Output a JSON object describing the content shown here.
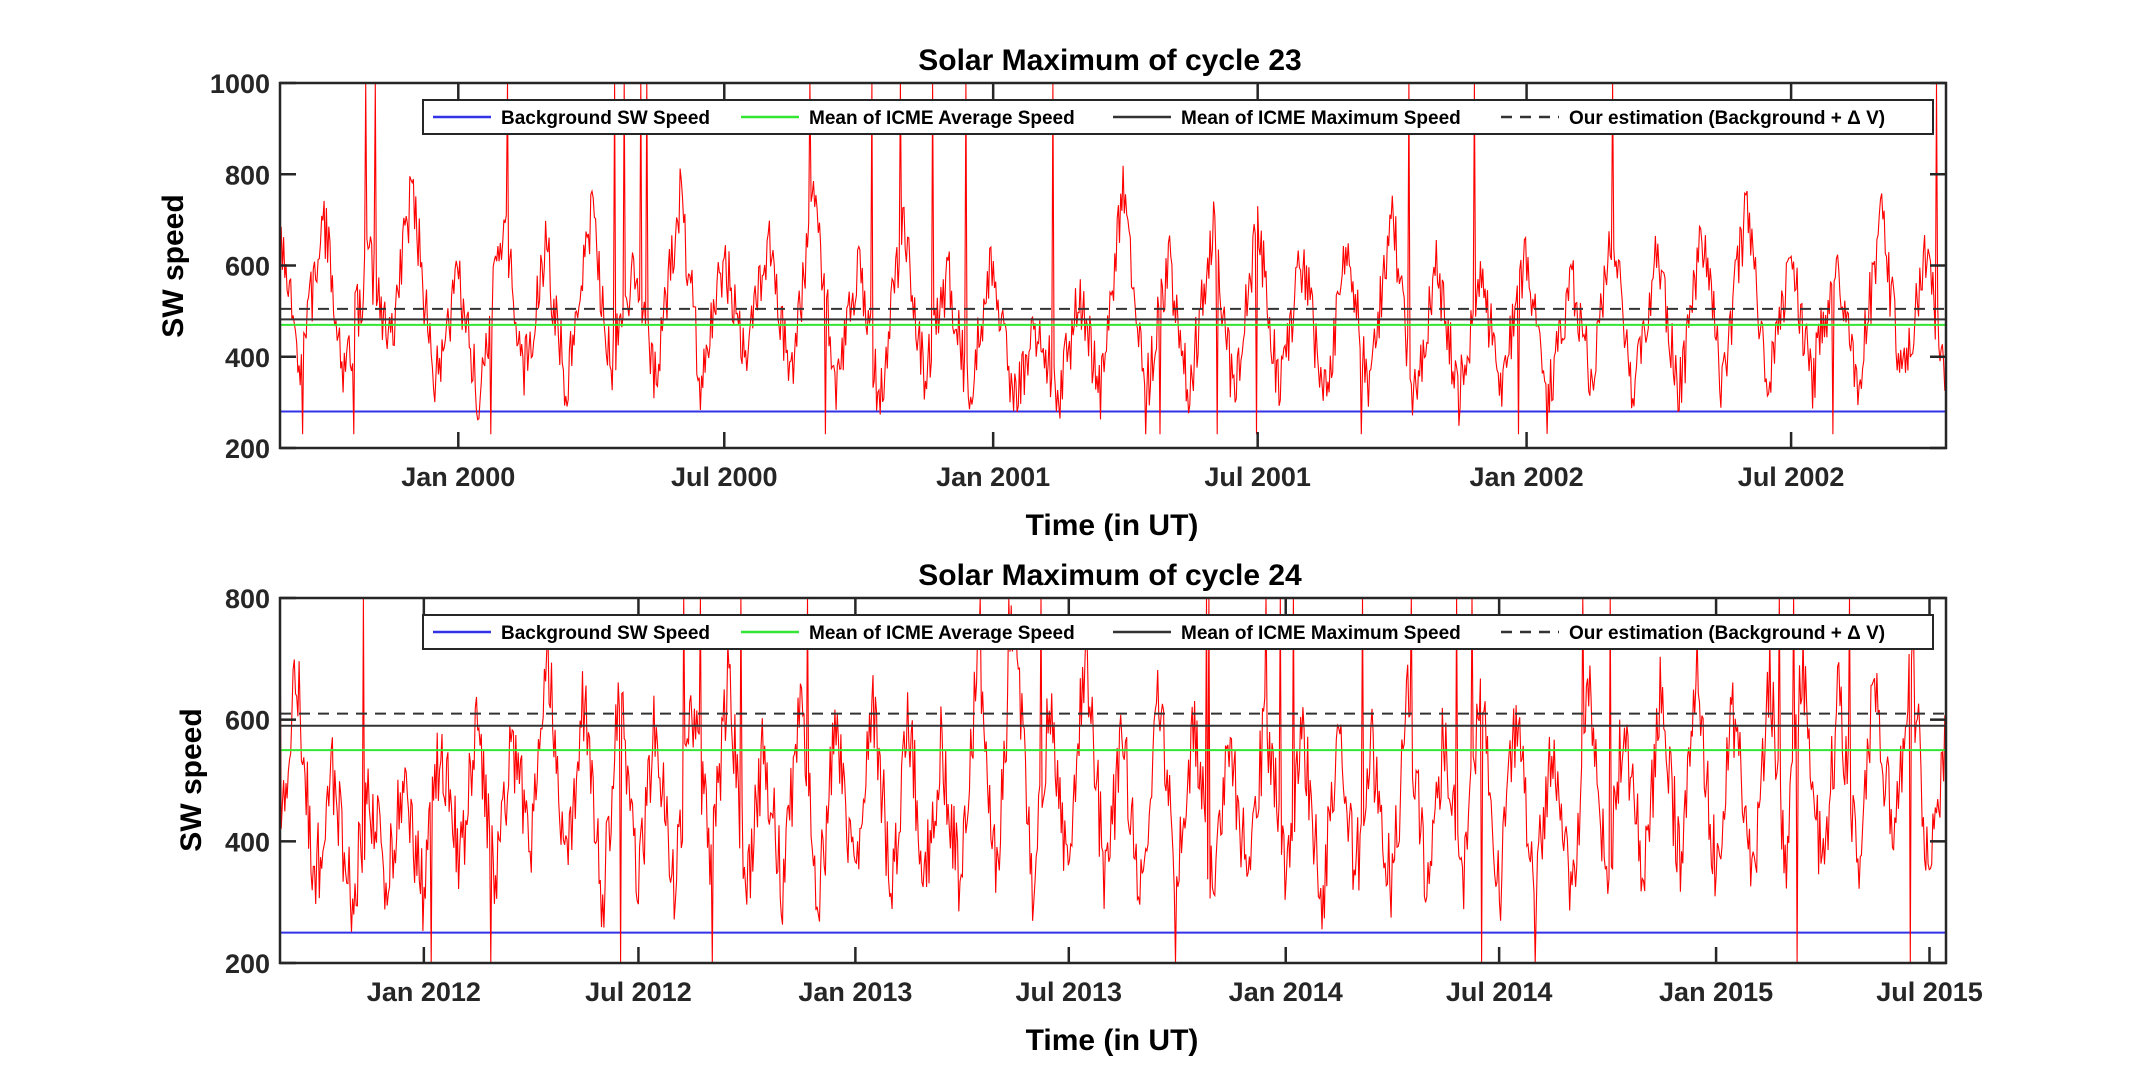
{
  "chart_data": [
    {
      "type": "line",
      "title": "Solar Maximum of cycle 23",
      "xlabel": "Time (in UT)",
      "ylabel": "SW speed",
      "xlim": [
        "1999-09-01",
        "2002-10-15"
      ],
      "ylim": [
        200,
        1000
      ],
      "yticks": [
        200,
        400,
        600,
        800,
        1000
      ],
      "xticks": [
        {
          "date": "2000-01-01",
          "label": "Jan 2000"
        },
        {
          "date": "2000-07-01",
          "label": "Jul 2000"
        },
        {
          "date": "2001-01-01",
          "label": "Jan 2001"
        },
        {
          "date": "2001-07-01",
          "label": "Jul 2001"
        },
        {
          "date": "2002-01-01",
          "label": "Jan 2002"
        },
        {
          "date": "2002-07-01",
          "label": "Jul 2002"
        }
      ],
      "grid": false,
      "legend_position": "top-right",
      "series": [
        {
          "name": "Background SW Speed",
          "kind": "hline",
          "y": 280,
          "color": "#3232e6",
          "style": "solid"
        },
        {
          "name": "Mean of ICME Average Speed",
          "kind": "hline",
          "y": 470,
          "color": "#33e633",
          "style": "solid"
        },
        {
          "name": "Mean of ICME Maximum Speed",
          "kind": "hline",
          "y": 482,
          "color": "#333333",
          "style": "solid"
        },
        {
          "name": "Our estimation (Background + Δ V)",
          "kind": "hline",
          "y": 505,
          "color": "#333333",
          "style": "dashed"
        }
      ],
      "sw_speed_series": {
        "color": "#ff0000",
        "x": [
          "1999-09-01",
          "1999-09-15",
          "1999-10-01",
          "1999-10-15",
          "1999-11-01",
          "1999-11-15",
          "1999-12-01",
          "1999-12-15",
          "2000-01-01",
          "2000-01-15",
          "2000-02-01",
          "2000-02-15",
          "2000-03-01",
          "2000-03-15",
          "2000-04-01",
          "2000-04-15",
          "2000-05-01",
          "2000-05-15",
          "2000-06-01",
          "2000-06-15",
          "2000-07-01",
          "2000-07-15",
          "2000-08-01",
          "2000-08-15",
          "2000-09-01",
          "2000-09-15",
          "2000-10-01",
          "2000-10-15",
          "2000-11-01",
          "2000-11-15",
          "2000-12-01",
          "2000-12-15",
          "2001-01-01",
          "2001-01-15",
          "2001-02-01",
          "2001-02-15",
          "2001-03-01",
          "2001-03-15",
          "2001-04-01",
          "2001-04-15",
          "2001-05-01",
          "2001-05-15",
          "2001-06-01",
          "2001-06-15",
          "2001-07-01",
          "2001-07-15",
          "2001-08-01",
          "2001-08-15",
          "2001-09-01",
          "2001-09-15",
          "2001-10-01",
          "2001-10-15",
          "2001-11-01",
          "2001-11-15",
          "2001-12-01",
          "2001-12-15",
          "2002-01-01",
          "2002-01-15",
          "2002-02-01",
          "2002-02-15",
          "2002-03-01",
          "2002-03-15",
          "2002-04-01",
          "2002-04-15",
          "2002-05-01",
          "2002-05-15",
          "2002-06-01",
          "2002-06-15",
          "2002-07-01",
          "2002-07-15",
          "2002-08-01",
          "2002-08-15",
          "2002-09-01",
          "2002-09-15",
          "2002-10-01",
          "2002-10-15"
        ],
        "y": [
          640,
          380,
          700,
          360,
          620,
          420,
          780,
          330,
          560,
          300,
          700,
          360,
          640,
          330,
          720,
          380,
          600,
          350,
          760,
          340,
          620,
          380,
          680,
          330,
          760,
          320,
          620,
          300,
          700,
          340,
          580,
          310,
          620,
          290,
          480,
          300,
          540,
          320,
          780,
          300,
          620,
          330,
          680,
          300,
          700,
          340,
          620,
          300,
          660,
          320,
          720,
          300,
          600,
          300,
          560,
          330,
          620,
          300,
          580,
          340,
          700,
          320,
          640,
          300,
          680,
          330,
          740,
          310,
          640,
          340,
          600,
          320,
          700,
          330,
          620,
          360
        ],
        "min_value": 230,
        "max_value": 1000
      }
    },
    {
      "type": "line",
      "title": "Solar Maximum of cycle 24",
      "xlabel": "Time (in UT)",
      "ylabel": "SW speed",
      "xlim": [
        "2011-09-01",
        "2015-07-15"
      ],
      "ylim": [
        200,
        800
      ],
      "yticks": [
        200,
        400,
        600,
        800
      ],
      "xticks": [
        {
          "date": "2012-01-01",
          "label": "Jan 2012"
        },
        {
          "date": "2012-07-01",
          "label": "Jul 2012"
        },
        {
          "date": "2013-01-01",
          "label": "Jan 2013"
        },
        {
          "date": "2013-07-01",
          "label": "Jul 2013"
        },
        {
          "date": "2014-01-01",
          "label": "Jan 2014"
        },
        {
          "date": "2014-07-01",
          "label": "Jul 2014"
        },
        {
          "date": "2015-01-01",
          "label": "Jan 2015"
        },
        {
          "date": "2015-07-01",
          "label": "Jul 2015"
        }
      ],
      "grid": false,
      "legend_position": "top-right",
      "series": [
        {
          "name": "Background SW Speed",
          "kind": "hline",
          "y": 250,
          "color": "#3232e6",
          "style": "solid"
        },
        {
          "name": "Mean of ICME Average Speed",
          "kind": "hline",
          "y": 550,
          "color": "#33e633",
          "style": "solid"
        },
        {
          "name": "Mean of ICME Maximum Speed",
          "kind": "hline",
          "y": 590,
          "color": "#333333",
          "style": "solid"
        },
        {
          "name": "Our estimation (Background + Δ V)",
          "kind": "hline",
          "y": 610,
          "color": "#333333",
          "style": "dashed"
        }
      ],
      "sw_speed_series": {
        "color": "#ff0000",
        "x": [
          "2011-09-01",
          "2011-09-15",
          "2011-10-01",
          "2011-10-15",
          "2011-11-01",
          "2011-11-15",
          "2011-12-01",
          "2011-12-15",
          "2012-01-01",
          "2012-01-15",
          "2012-02-01",
          "2012-02-15",
          "2012-03-01",
          "2012-03-15",
          "2012-04-01",
          "2012-04-15",
          "2012-05-01",
          "2012-05-15",
          "2012-06-01",
          "2012-06-15",
          "2012-07-01",
          "2012-07-15",
          "2012-08-01",
          "2012-08-15",
          "2012-09-01",
          "2012-09-15",
          "2012-10-01",
          "2012-10-15",
          "2012-11-01",
          "2012-11-15",
          "2012-12-01",
          "2012-12-15",
          "2013-01-01",
          "2013-01-15",
          "2013-02-01",
          "2013-02-15",
          "2013-03-01",
          "2013-03-15",
          "2013-04-01",
          "2013-04-15",
          "2013-05-01",
          "2013-05-15",
          "2013-06-01",
          "2013-06-15",
          "2013-07-01",
          "2013-07-15",
          "2013-08-01",
          "2013-08-15",
          "2013-09-01",
          "2013-09-15",
          "2013-10-01",
          "2013-10-15",
          "2013-11-01",
          "2013-11-15",
          "2013-12-01",
          "2013-12-15",
          "2014-01-01",
          "2014-01-15",
          "2014-02-01",
          "2014-02-15",
          "2014-03-01",
          "2014-03-15",
          "2014-04-01",
          "2014-04-15",
          "2014-05-01",
          "2014-05-15",
          "2014-06-01",
          "2014-06-15",
          "2014-07-01",
          "2014-07-15",
          "2014-08-01",
          "2014-08-15",
          "2014-09-01",
          "2014-09-15",
          "2014-10-01",
          "2014-10-15",
          "2014-11-01",
          "2014-11-15",
          "2014-12-01",
          "2014-12-15",
          "2015-01-01",
          "2015-01-15",
          "2015-02-01",
          "2015-02-15",
          "2015-03-01",
          "2015-03-15",
          "2015-04-01",
          "2015-04-15",
          "2015-05-01",
          "2015-05-15",
          "2015-06-01",
          "2015-06-15",
          "2015-07-01",
          "2015-07-15"
        ],
        "y": [
          420,
          680,
          330,
          520,
          300,
          480,
          330,
          500,
          310,
          560,
          360,
          620,
          340,
          560,
          400,
          720,
          330,
          640,
          300,
          660,
          330,
          600,
          320,
          640,
          360,
          680,
          310,
          560,
          320,
          620,
          300,
          580,
          330,
          640,
          320,
          600,
          340,
          560,
          320,
          700,
          340,
          780,
          310,
          640,
          330,
          720,
          320,
          580,
          300,
          640,
          330,
          600,
          310,
          560,
          320,
          620,
          330,
          580,
          300,
          600,
          340,
          560,
          320,
          640,
          300,
          580,
          320,
          660,
          300,
          600,
          330,
          560,
          320,
          640,
          340,
          600,
          330,
          660,
          360,
          700,
          340,
          620,
          330,
          680,
          350,
          700,
          340,
          640,
          360,
          660,
          380,
          720,
          340,
          600
        ],
        "min_value": 200,
        "max_value": 800
      }
    }
  ]
}
